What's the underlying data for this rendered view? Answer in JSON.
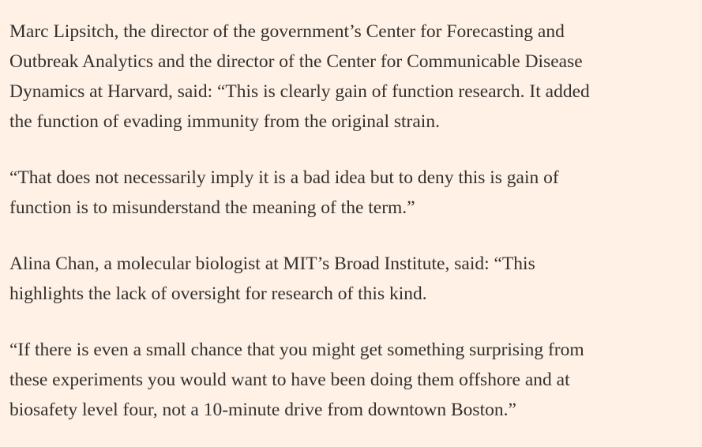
{
  "article": {
    "paragraphs": [
      {
        "lines": [
          "Marc Lipsitch, the director of the government’s Center for Forecasting and",
          "Outbreak Analytics and the director of the Center for Communicable Disease",
          "Dynamics at Harvard, said: “This is clearly gain of function research. It added",
          "the function of evading immunity from the original strain."
        ]
      },
      {
        "lines": [
          "“That does not necessarily imply it is a bad idea but to deny this is gain of",
          "function is to misunderstand the meaning of the term.”"
        ]
      },
      {
        "lines": [
          "Alina Chan, a molecular biologist at MIT’s Broad Institute, said: “This",
          "highlights the lack of oversight for research of this kind."
        ]
      },
      {
        "lines": [
          "“If there is even a small chance that you might get something surprising from",
          "these experiments you would want to have been doing them offshore and at",
          "biosafety level four, not a 10-minute drive from downtown Boston.”"
        ]
      }
    ]
  }
}
